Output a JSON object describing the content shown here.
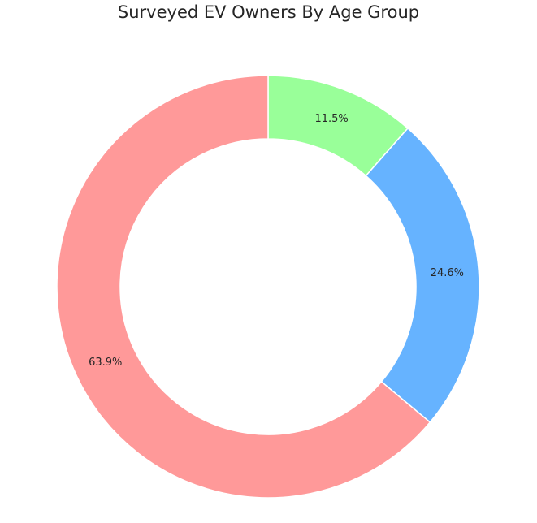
{
  "chart_data": {
    "type": "pie",
    "variant": "donut",
    "title": "Surveyed EV Owners By Age Group",
    "slices": [
      {
        "value": 11.5,
        "label": "11.5%",
        "color": "#99ff99"
      },
      {
        "value": 24.6,
        "label": "24.6%",
        "color": "#66b3ff"
      },
      {
        "value": 63.9,
        "label": "63.9%",
        "color": "#ff9999"
      }
    ],
    "start": "12 o'clock",
    "direction": "clockwise",
    "edge_color": "#ffffff"
  }
}
